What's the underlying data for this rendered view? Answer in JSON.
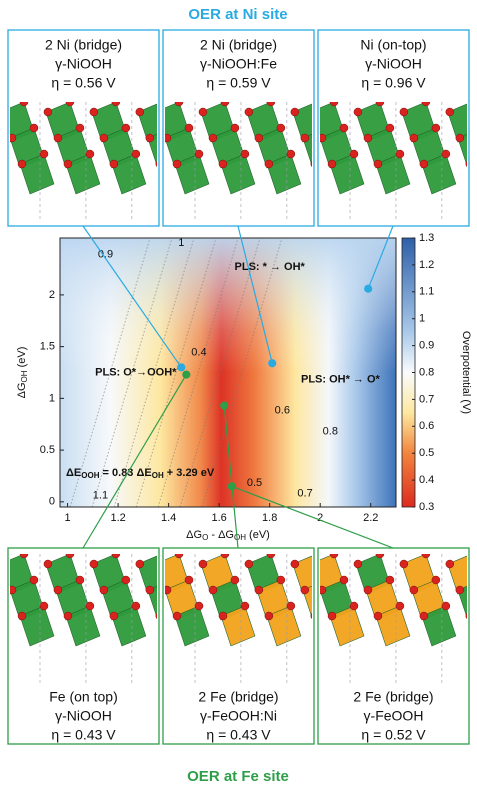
{
  "top_title": "OER at Ni site",
  "bottom_title": "OER at Fe site",
  "top_panels": [
    {
      "lines": [
        "2 Ni (bridge)",
        "γ-NiOOH",
        "η = 0.56 V"
      ]
    },
    {
      "lines": [
        "2 Ni (bridge)",
        "γ-NiOOH:Fe",
        "η = 0.59 V"
      ]
    },
    {
      "lines": [
        "Ni (on-top)",
        "γ-NiOOH",
        "η = 0.96 V"
      ]
    }
  ],
  "bottom_panels": [
    {
      "lines": [
        "Fe (on top)",
        "γ-NiOOH",
        "η = 0.43 V"
      ]
    },
    {
      "lines": [
        "2 Fe (bridge)",
        "γ-FeOOH:Ni",
        "η = 0.43 V"
      ]
    },
    {
      "lines": [
        "2 Fe (bridge)",
        "γ-FeOOH",
        "η = 0.52 V"
      ]
    }
  ],
  "chart_data": {
    "type": "scatter",
    "x_label": [
      "ΔG",
      "O",
      " - ΔG",
      "OH",
      " (eV)"
    ],
    "y_label": [
      "ΔG",
      "OH",
      " (eV)"
    ],
    "xlim": [
      0.97,
      2.3
    ],
    "ylim": [
      -0.05,
      2.55
    ],
    "xticks": [
      1,
      1.2,
      1.4,
      1.6,
      1.8,
      2,
      2.2
    ],
    "yticks": [
      0,
      0.5,
      1,
      1.5,
      2
    ],
    "series": [
      {
        "color": "#29abe2",
        "x": [
          1.45,
          1.81,
          2.19
        ],
        "values": [
          1.3,
          1.34,
          2.06
        ]
      },
      {
        "color": "#2e9e49",
        "x": [
          1.47,
          1.62,
          1.65
        ],
        "values": [
          1.23,
          0.93,
          0.15
        ]
      }
    ],
    "annotations": [
      "PLS: * → OH*",
      "PLS: O*→OOH*",
      "PLS: OH* → O*"
    ],
    "equation": [
      "ΔE",
      "OOH",
      " = 0.83 ΔE",
      "OH",
      " + 3.29 eV"
    ],
    "contour_labels": [
      0.9,
      1,
      0.4,
      0.6,
      0.8,
      0.5,
      0.7,
      1.1
    ],
    "colorbar": {
      "label": "Overpotential (V)",
      "lim": [
        0.3,
        1.3
      ],
      "ticks": [
        0.3,
        0.4,
        0.5,
        0.6,
        0.7,
        0.8,
        0.9,
        1,
        1.1,
        1.2,
        1.3
      ]
    }
  }
}
